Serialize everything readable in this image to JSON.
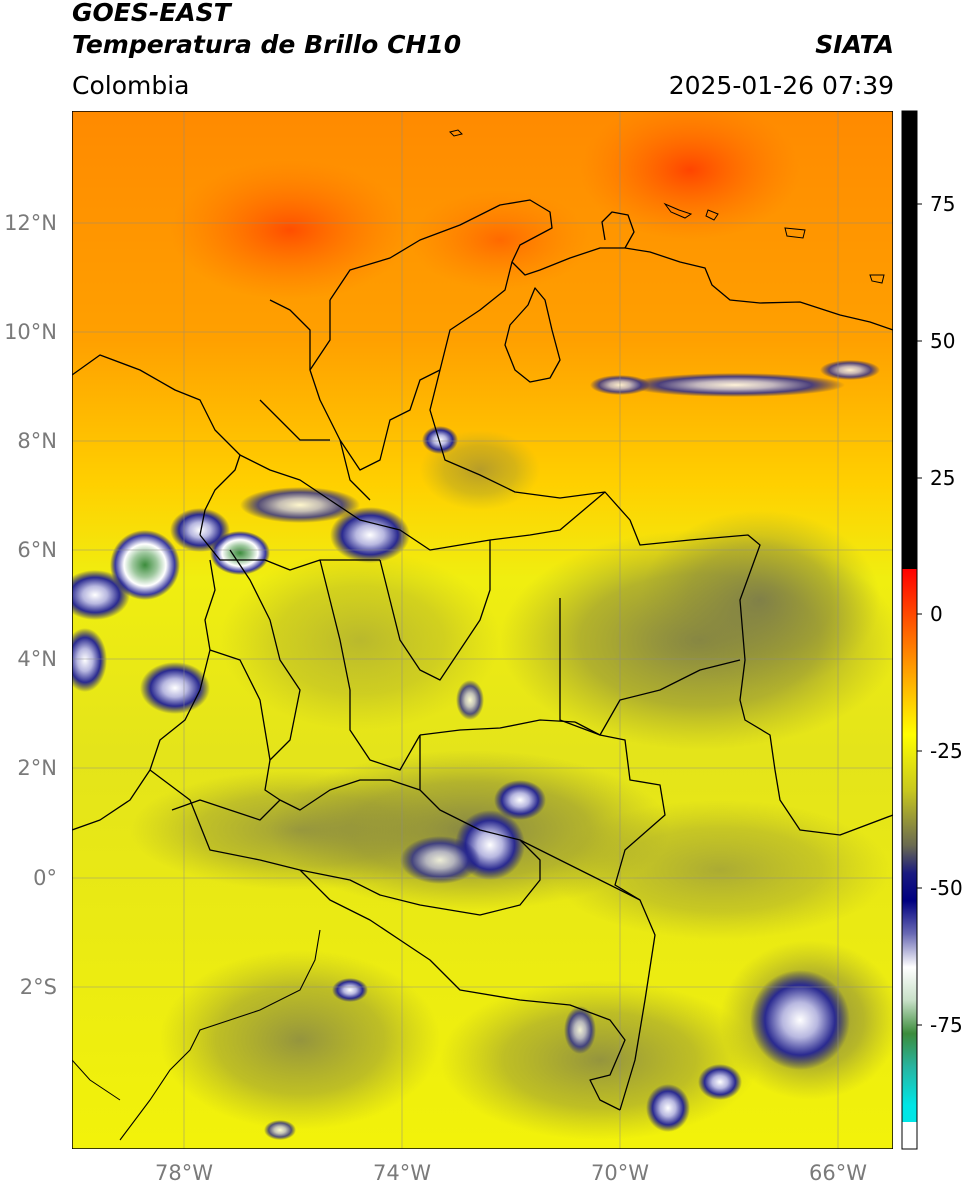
{
  "header": {
    "satellite": "GOES-EAST",
    "product": "Temperatura de Brillo CH10",
    "region": "Colombia",
    "source": "SIATA",
    "datetime": "2025-01-26 07:39"
  },
  "map": {
    "lat_labels": [
      "12°N",
      "10°N",
      "8°N",
      "6°N",
      "4°N",
      "2°N",
      "0°",
      "2°S"
    ],
    "lon_labels": [
      "78°W",
      "74°W",
      "70°W",
      "66°W"
    ]
  },
  "colorbar": {
    "ticks": [
      "75",
      "50",
      "25",
      "0",
      "-25",
      "-50",
      "-75"
    ],
    "colors": {
      "black": "#000000",
      "red": "#ff2a00",
      "orange": "#ff9a00",
      "yellow": "#ffff00",
      "olive": "#8c8c3c",
      "gray": "#555555",
      "navy": "#0a0a78",
      "white": "#ffffff",
      "green": "#3c8c3c",
      "cyan": "#00e0e0"
    }
  }
}
